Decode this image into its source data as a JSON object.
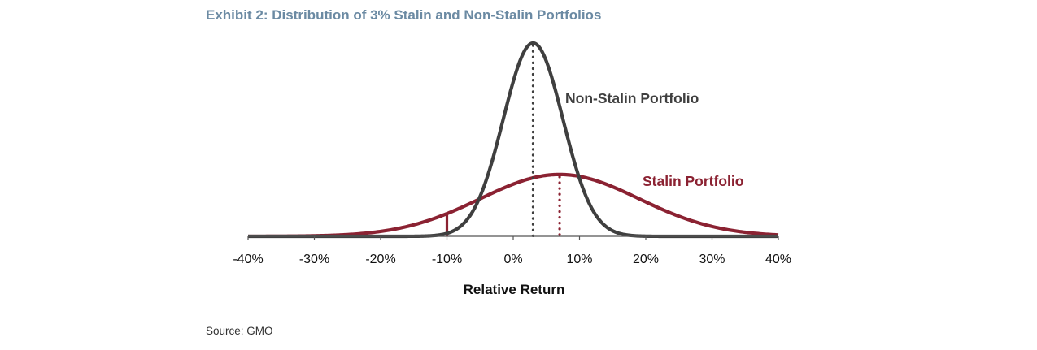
{
  "title": "Exhibit 2: Distribution of 3% Stalin and Non-Stalin Portfolios",
  "source": "Source: GMO",
  "chart_data": {
    "type": "line",
    "xlabel": "Relative Return",
    "ylabel": "",
    "xlim": [
      -40,
      40
    ],
    "ylim": [
      0,
      1
    ],
    "grid": false,
    "x_ticks": [
      "-40%",
      "-30%",
      "-20%",
      "-10%",
      "0%",
      "10%",
      "20%",
      "30%",
      "40%"
    ],
    "x_tick_values": [
      -40,
      -30,
      -20,
      -10,
      0,
      10,
      20,
      30,
      40
    ],
    "series": [
      {
        "name": "Non-Stalin Portfolio",
        "color": "#3f3f3f",
        "distribution": "normal",
        "mean": 3,
        "std": 4.5,
        "peak_density": 1.0,
        "mean_marker": "dotted"
      },
      {
        "name": "Stalin Portfolio",
        "color": "#8b2232",
        "distribution": "normal",
        "mean": 7,
        "std": 12,
        "peak_density": 0.32,
        "mean_marker": "dotted",
        "threshold_marker": -10
      }
    ]
  }
}
